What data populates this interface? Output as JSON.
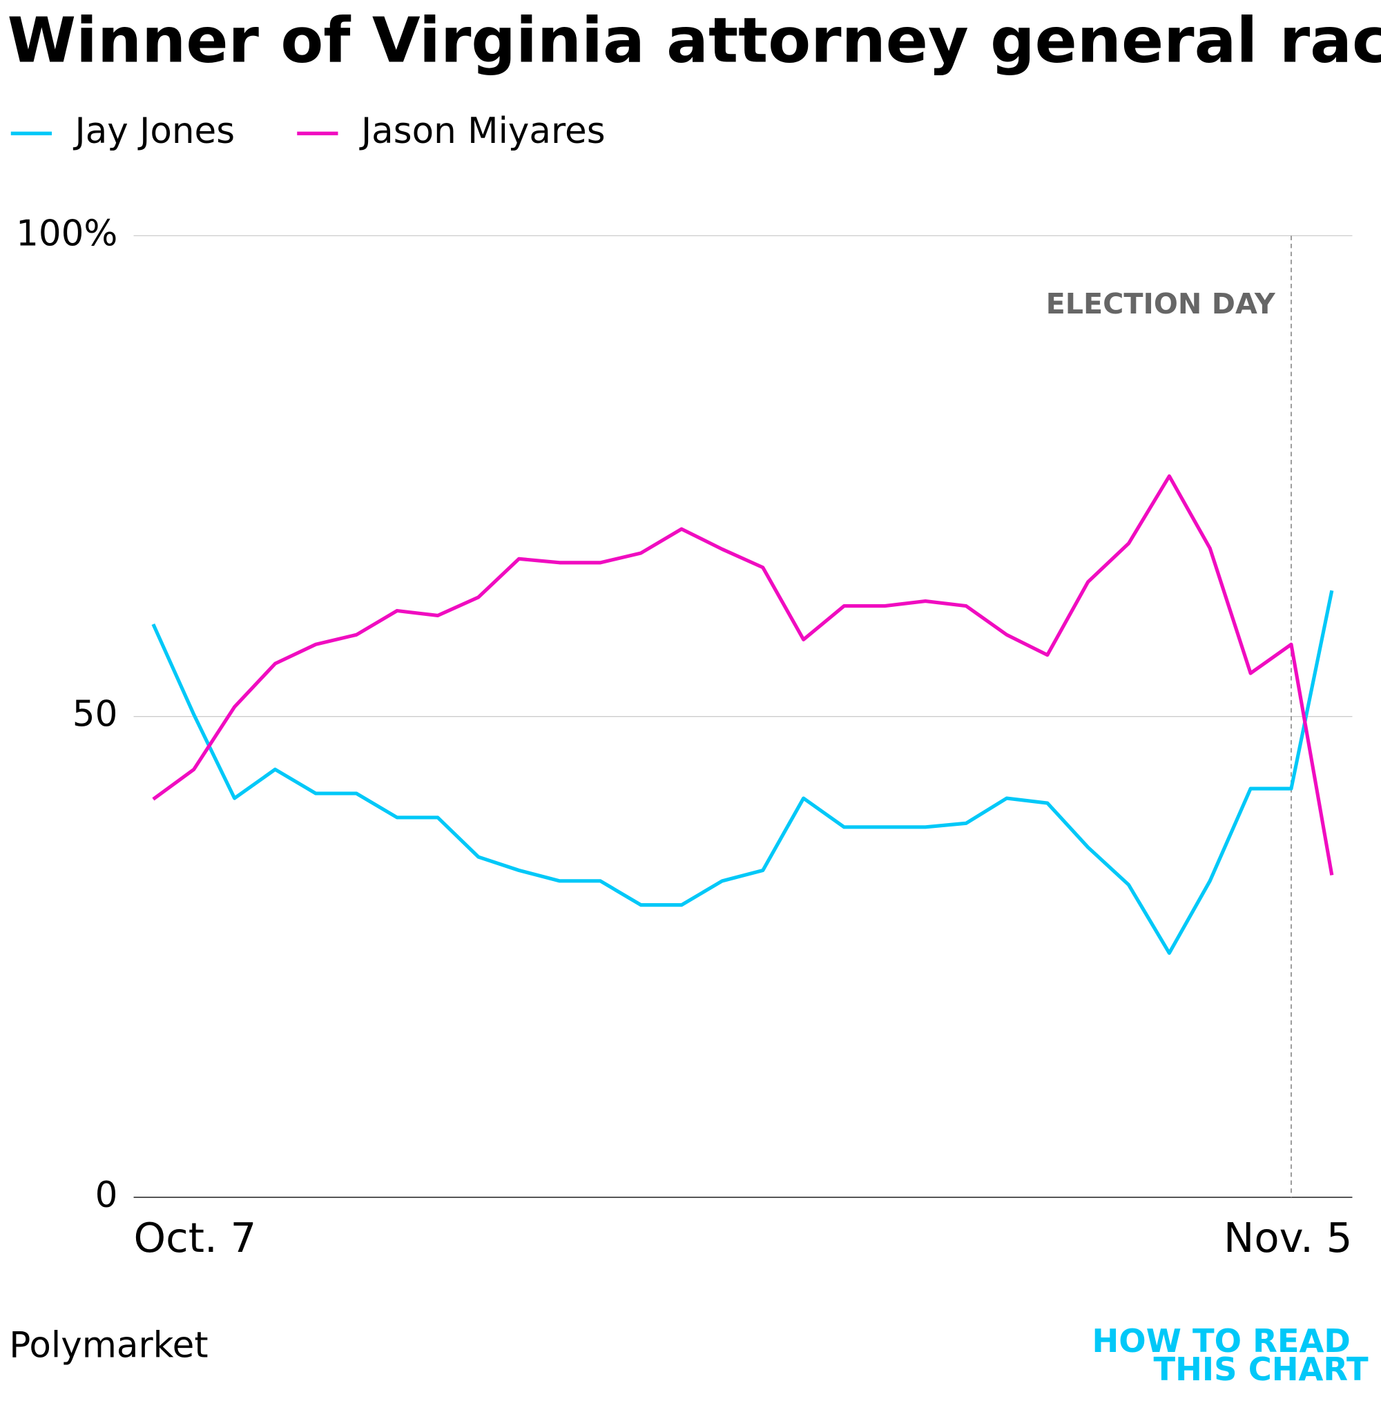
{
  "chart_data": {
    "type": "line",
    "title": "Winner of  Virginia attorney general race",
    "categories": [
      "Oct. 7",
      null,
      null,
      null,
      null,
      null,
      null,
      null,
      null,
      null,
      null,
      null,
      null,
      null,
      null,
      null,
      null,
      null,
      null,
      null,
      null,
      null,
      null,
      null,
      null,
      null,
      null,
      null,
      null,
      "Nov. 5"
    ],
    "series": [
      {
        "name": "Jay Jones",
        "color": "#00c8f8",
        "values": [
          59.6,
          50.2,
          41.5,
          44.5,
          42,
          42,
          39.5,
          39.5,
          35.4,
          34,
          32.9,
          32.9,
          30.4,
          30.4,
          32.9,
          34,
          41.5,
          38.5,
          38.5,
          38.5,
          38.9,
          41.5,
          41,
          36.4,
          32.5,
          25.4,
          32.9,
          42.5,
          42.5,
          63.1
        ]
      },
      {
        "name": "Jason Miyares",
        "color": "#f00cc0",
        "values": [
          41.4,
          44.5,
          51,
          55.5,
          57.5,
          58.5,
          61,
          60.5,
          62.4,
          66.4,
          66,
          66,
          67,
          69.5,
          67.4,
          65.5,
          58,
          61.5,
          61.5,
          62,
          61.5,
          58.5,
          56.4,
          64,
          68,
          75,
          67.5,
          54.5,
          57.5,
          33.5
        ]
      }
    ],
    "ylim": [
      0,
      100
    ],
    "yticks": [
      0,
      50,
      {
        "value": 100,
        "label": "100%"
      }
    ],
    "grid": true,
    "annotations": [
      {
        "text": "ELECTION DAY",
        "at": 28
      }
    ],
    "source": "Polymarket",
    "logo": [
      "HOW TO READ",
      "THIS CHART"
    ]
  }
}
